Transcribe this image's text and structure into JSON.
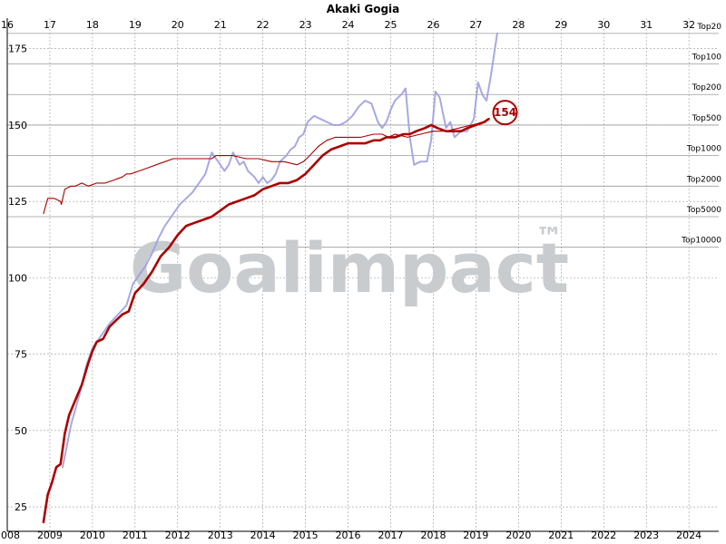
{
  "chart_data": {
    "type": "line",
    "title": "Akaki Gogia",
    "watermark": "Goalimpact",
    "watermark_mark": "™",
    "x_axis_bottom": {
      "label": "",
      "range": [
        2008,
        2024.7
      ],
      "ticks": [
        "2008",
        "2009",
        "2010",
        "2011",
        "2012",
        "2013",
        "2014",
        "2015",
        "2016",
        "2017",
        "2018",
        "2019",
        "2020",
        "2021",
        "2022",
        "2023",
        "2024"
      ]
    },
    "x_axis_top": {
      "label": "",
      "meaning": "age",
      "ticks": [
        "16",
        "17",
        "18",
        "19",
        "20",
        "21",
        "22",
        "23",
        "24",
        "25",
        "26",
        "27",
        "28",
        "29",
        "30",
        "31",
        "32"
      ]
    },
    "y_axis": {
      "label": "",
      "range": [
        17,
        185
      ],
      "ticks": [
        "25",
        "50",
        "75",
        "100",
        "125",
        "150",
        "175"
      ]
    },
    "grid": true,
    "reference_bands": [
      {
        "label": "Top20",
        "value": 180
      },
      {
        "label": "Top100",
        "value": 170
      },
      {
        "label": "Top200",
        "value": 160
      },
      {
        "label": "Top500",
        "value": 150
      },
      {
        "label": "Top1000",
        "value": 140
      },
      {
        "label": "Top2000",
        "value": 130
      },
      {
        "label": "Top5000",
        "value": 120
      },
      {
        "label": "Top10000",
        "value": 110
      }
    ],
    "badge": {
      "value": "154",
      "x": 2019.45,
      "y": 153.5
    },
    "colors": {
      "goalimpact": "#aa0000",
      "peak": "#aa0000",
      "raw": "#9e9ee0",
      "grid": "#999999",
      "band": "#9a9a9a",
      "watermark": "#c9cccf"
    },
    "series": [
      {
        "key": "goalimpact",
        "x": [
          2008.85,
          2008.95,
          2009.05,
          2009.15,
          2009.25,
          2009.35,
          2009.45,
          2009.6,
          2009.75,
          2009.9,
          2010.0,
          2010.1,
          2010.25,
          2010.4,
          2010.55,
          2010.7,
          2010.85,
          2011.0,
          2011.2,
          2011.4,
          2011.6,
          2011.8,
          2012.0,
          2012.2,
          2012.4,
          2012.6,
          2012.8,
          2013.0,
          2013.2,
          2013.4,
          2013.6,
          2013.8,
          2014.0,
          2014.2,
          2014.4,
          2014.6,
          2014.8,
          2015.0,
          2015.2,
          2015.4,
          2015.6,
          2015.8,
          2016.0,
          2016.2,
          2016.4,
          2016.6,
          2016.75,
          2016.9,
          2017.1,
          2017.3,
          2017.45,
          2017.6,
          2017.8,
          2017.95,
          2018.1,
          2018.3,
          2018.5,
          2018.65,
          2018.8,
          2019.0,
          2019.2,
          2019.3
        ],
        "y": [
          20,
          29,
          33,
          38,
          39,
          49,
          55,
          60,
          65,
          72,
          76,
          79,
          80,
          84,
          86,
          88,
          89,
          95,
          98,
          102,
          107,
          110,
          114,
          117,
          118,
          119,
          120,
          122,
          124,
          125,
          126,
          127,
          129,
          130,
          131,
          131,
          132,
          134,
          137,
          140,
          142,
          143,
          144,
          144,
          144,
          145,
          145,
          146,
          146,
          147,
          147,
          148,
          149,
          150,
          149,
          148,
          148,
          148,
          149,
          150,
          151,
          152
        ]
      },
      {
        "key": "peak",
        "x": [
          2008.85,
          2008.95,
          2009.1,
          2009.25,
          2009.27,
          2009.35,
          2009.5,
          2009.6,
          2009.75,
          2009.9,
          2010.1,
          2010.3,
          2010.5,
          2010.7,
          2010.8,
          2010.9,
          2011.1,
          2011.3,
          2011.5,
          2011.7,
          2011.9,
          2012.2,
          2012.5,
          2012.8,
          2012.9,
          2013.0,
          2013.3,
          2013.6,
          2013.9,
          2014.2,
          2014.5,
          2014.8,
          2014.95,
          2015.1,
          2015.3,
          2015.5,
          2015.7,
          2016.0,
          2016.3,
          2016.6,
          2016.8,
          2016.95,
          2017.1,
          2017.4,
          2017.7,
          2018.0,
          2018.3,
          2018.6,
          2018.9,
          2019.2,
          2019.3
        ],
        "y": [
          121,
          126,
          126,
          125,
          124,
          129,
          130,
          130,
          131,
          130,
          131,
          131,
          132,
          133,
          134,
          134,
          135,
          136,
          137,
          138,
          139,
          139,
          139,
          139,
          140,
          140,
          140,
          139,
          139,
          138,
          138,
          137,
          138,
          140,
          143,
          145,
          146,
          146,
          146,
          147,
          147,
          146,
          147,
          146,
          147,
          148,
          148,
          149,
          150,
          151,
          152
        ]
      },
      {
        "key": "raw",
        "x": [
          2009.3,
          2009.5,
          2009.7,
          2009.85,
          2010.0,
          2010.2,
          2010.4,
          2010.6,
          2010.8,
          2010.95,
          2011.1,
          2011.25,
          2011.4,
          2011.55,
          2011.7,
          2011.9,
          2012.05,
          2012.2,
          2012.35,
          2012.5,
          2012.65,
          2012.8,
          2012.95,
          2013.1,
          2013.2,
          2013.3,
          2013.45,
          2013.55,
          2013.65,
          2013.8,
          2013.9,
          2014.0,
          2014.1,
          2014.2,
          2014.3,
          2014.4,
          2014.55,
          2014.65,
          2014.75,
          2014.85,
          2014.95,
          2015.05,
          2015.2,
          2015.35,
          2015.5,
          2015.65,
          2015.8,
          2015.95,
          2016.1,
          2016.25,
          2016.4,
          2016.55,
          2016.7,
          2016.8,
          2016.9,
          2017.0,
          2017.1,
          2017.25,
          2017.35,
          2017.45,
          2017.55,
          2017.7,
          2017.85,
          2017.95,
          2018.05,
          2018.15,
          2018.3,
          2018.4,
          2018.5,
          2018.65,
          2018.8,
          2018.95,
          2019.05,
          2019.15,
          2019.25,
          2019.35,
          2019.5
        ],
        "y": [
          38,
          52,
          62,
          71,
          77,
          81,
          85,
          88,
          91,
          98,
          101,
          104,
          108,
          113,
          117,
          121,
          124,
          126,
          128,
          131,
          134,
          141,
          138,
          135,
          137,
          141,
          137,
          138,
          135,
          133,
          131,
          133,
          131,
          132,
          134,
          138,
          140,
          142,
          143,
          146,
          147,
          151,
          153,
          152,
          151,
          150,
          150,
          151,
          153,
          156,
          158,
          157,
          151,
          149,
          151,
          155,
          158,
          160,
          162,
          146,
          137,
          138,
          138,
          145,
          161,
          159,
          149,
          151,
          146,
          148,
          148,
          152,
          164,
          160,
          158,
          166,
          180
        ]
      }
    ]
  }
}
